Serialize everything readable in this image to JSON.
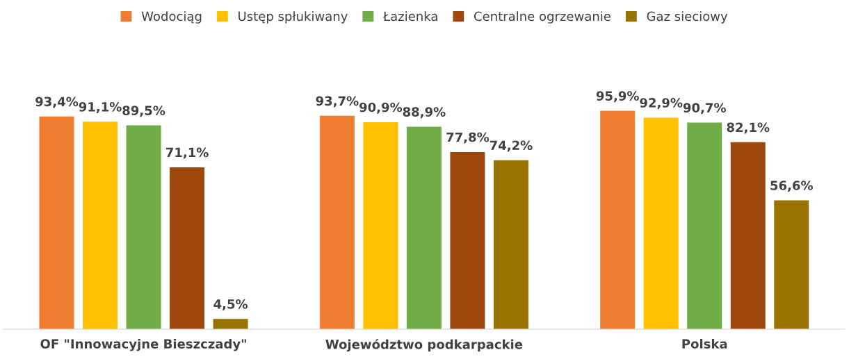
{
  "chart_data": {
    "type": "bar",
    "categories": [
      "OF \"Innowacyjne Bieszczady\"",
      "Województwo podkarpackie",
      "Polska"
    ],
    "series": [
      {
        "name": "Wodociąg",
        "color": "#ed7d31",
        "values": [
          93.4,
          93.7,
          95.9
        ],
        "value_labels": [
          "93,4%",
          "93,7%",
          "95,9%"
        ]
      },
      {
        "name": "Ustęp spłukiwany",
        "color": "#ffc000",
        "values": [
          91.1,
          90.9,
          92.9
        ],
        "value_labels": [
          "91,1%",
          "90,9%",
          "92,9%"
        ]
      },
      {
        "name": "Łazienka",
        "color": "#70ad47",
        "values": [
          89.5,
          88.9,
          90.7
        ],
        "value_labels": [
          "89,5%",
          "88,9%",
          "90,7%"
        ]
      },
      {
        "name": "Centralne ogrzewanie",
        "color": "#9e480e",
        "values": [
          71.1,
          77.8,
          82.1
        ],
        "value_labels": [
          "71,1%",
          "77,8%",
          "82,1%"
        ]
      },
      {
        "name": "Gaz sieciowy",
        "color": "#997300",
        "values": [
          4.5,
          74.2,
          56.6
        ],
        "value_labels": [
          "4,5%",
          "74,2%",
          "56,6%"
        ]
      }
    ],
    "legend": "top",
    "grid": false,
    "tick_labels": "x"
  }
}
